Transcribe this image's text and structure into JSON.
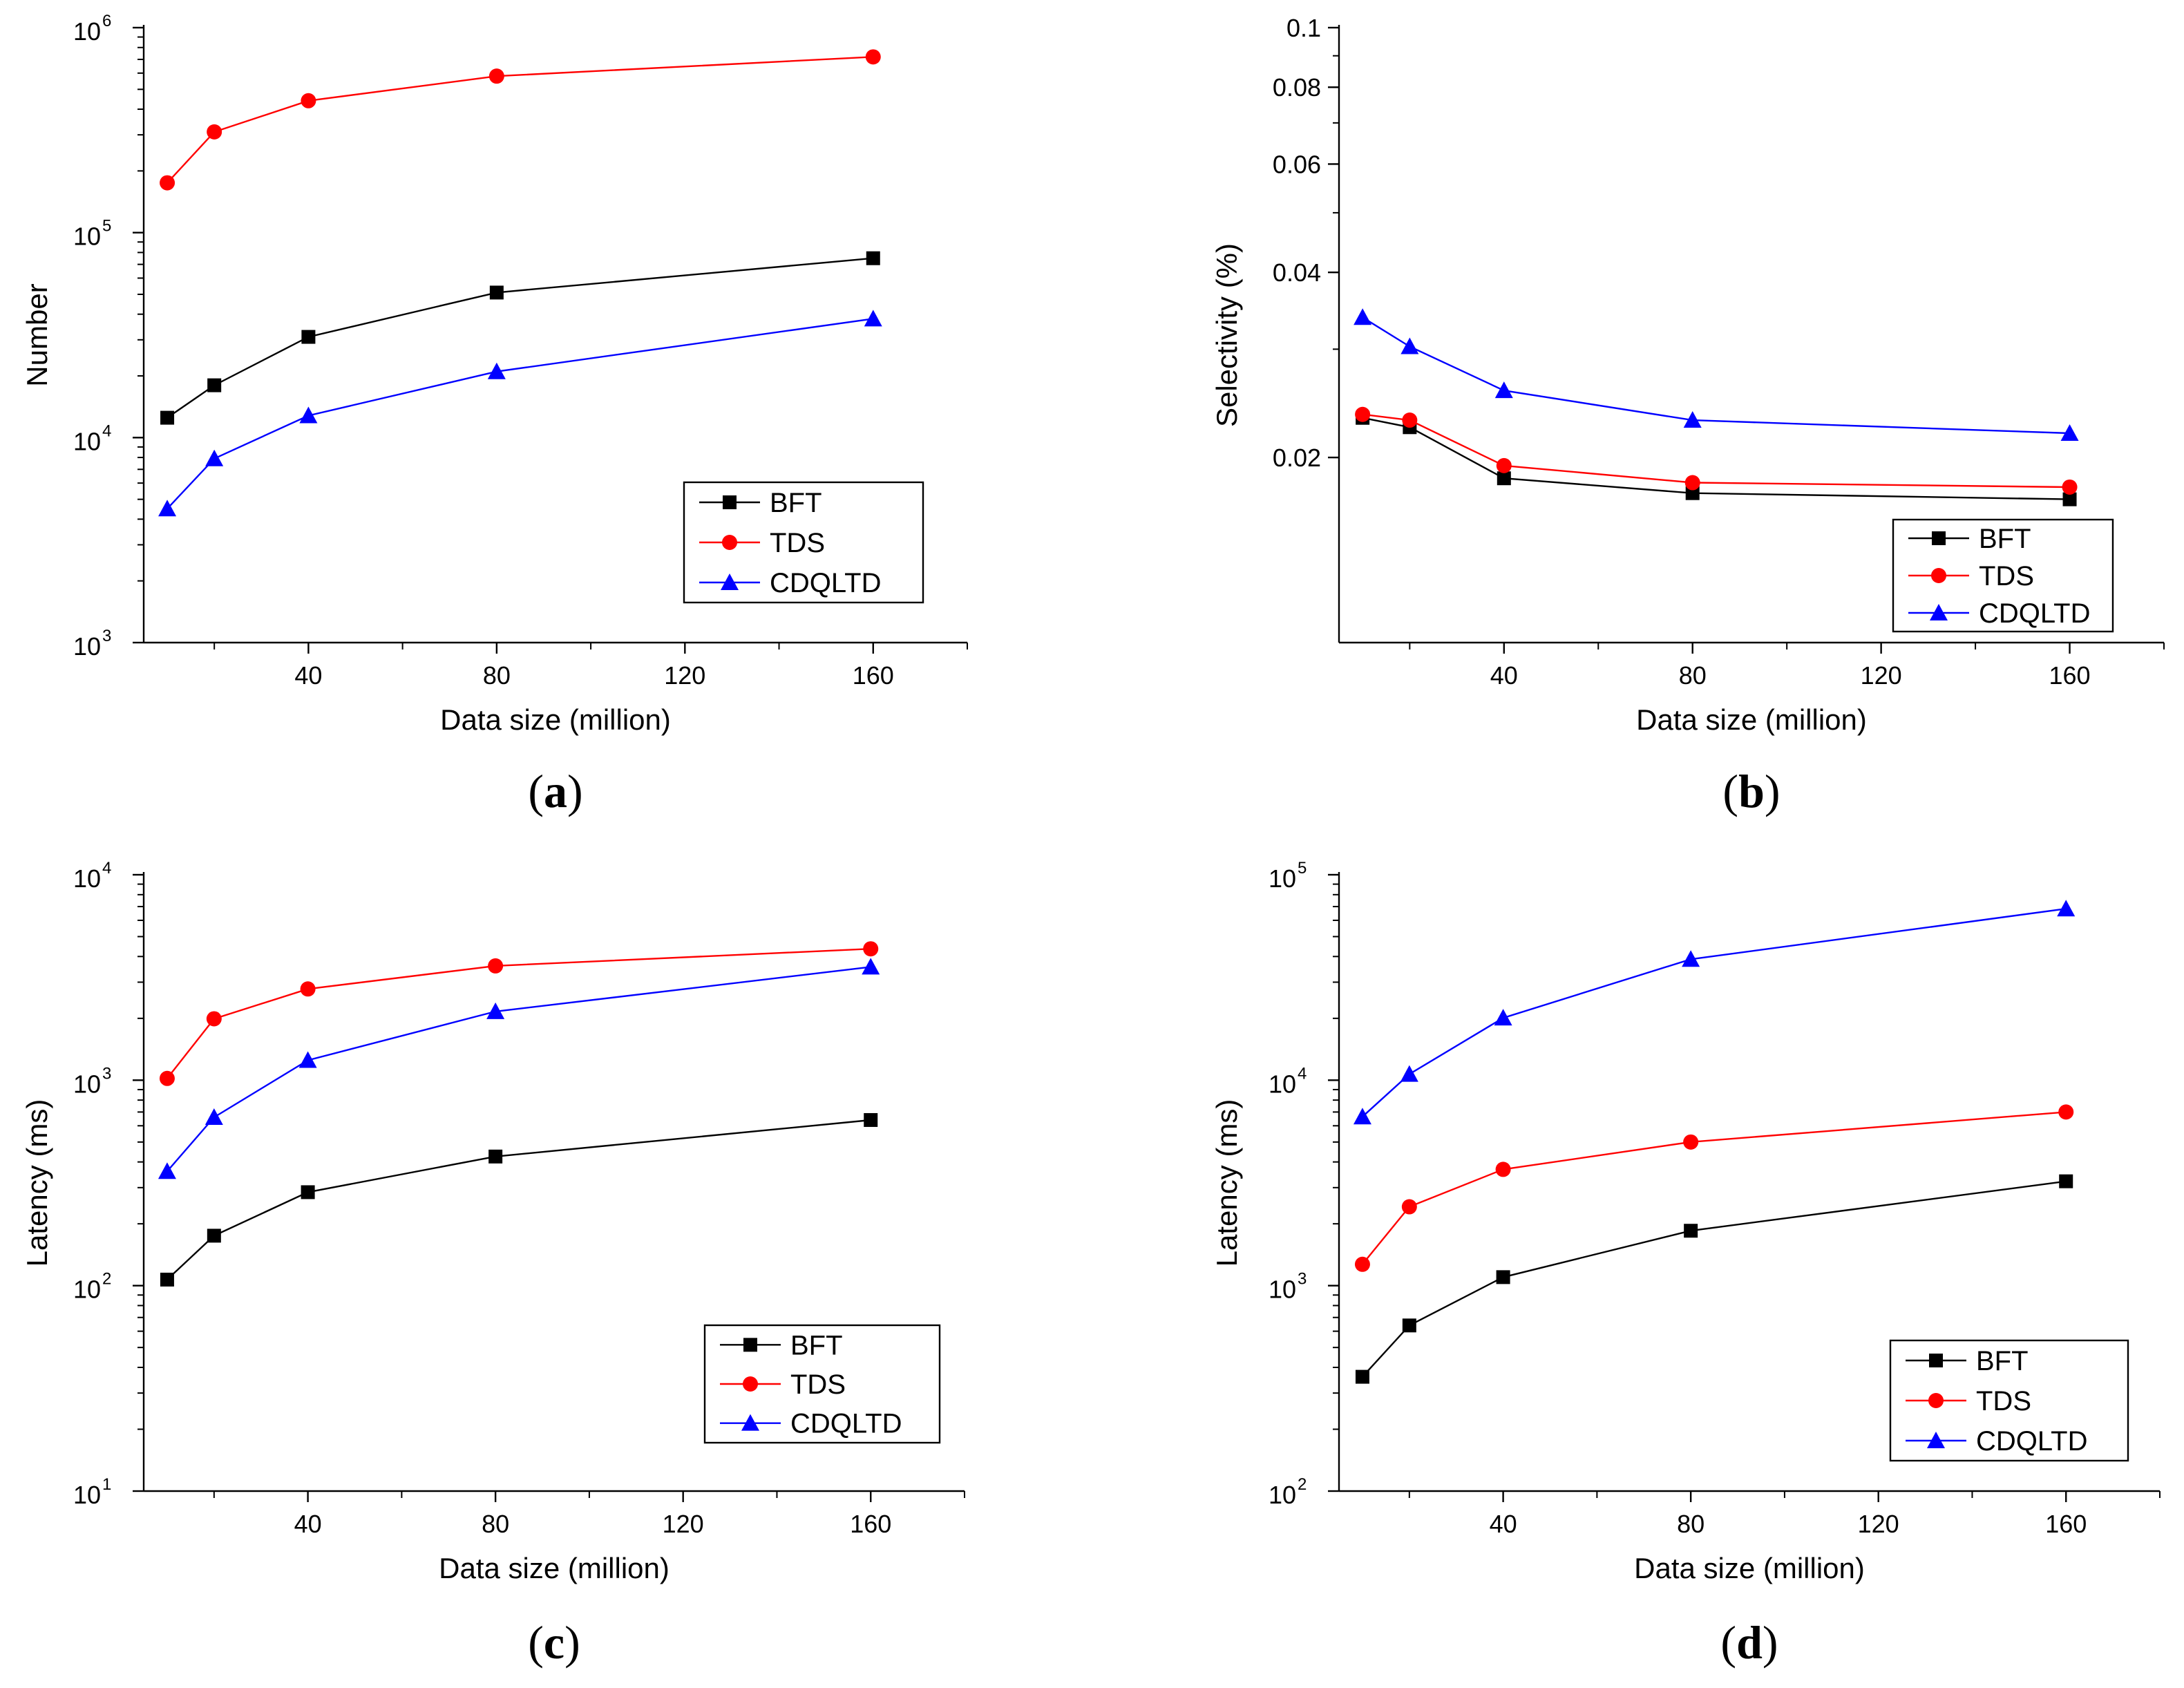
{
  "chart_data": [
    {
      "type": "line",
      "panel_label": "(a)",
      "panel_letter": "a",
      "xlabel": "Data size (million)",
      "ylabel": "Number",
      "yscale": "log",
      "xlim": [
        5,
        180
      ],
      "ylim": [
        1000,
        1000000
      ],
      "xticks": [
        40,
        80,
        120,
        160
      ],
      "yticks": [
        {
          "base": "10",
          "exp": "3",
          "value": 1000
        },
        {
          "base": "10",
          "exp": "4",
          "value": 10000
        },
        {
          "base": "10",
          "exp": "5",
          "value": 100000
        },
        {
          "base": "10",
          "exp": "6",
          "value": 1000000
        }
      ],
      "legend_position": "bottom-right",
      "x": [
        10,
        20,
        40,
        80,
        160
      ],
      "series": [
        {
          "name": "BFT",
          "color": "#000000",
          "marker": "square",
          "values": [
            12500,
            18000,
            31000,
            51000,
            75000
          ]
        },
        {
          "name": "TDS",
          "color": "#ff0000",
          "marker": "circle",
          "values": [
            175000,
            310000,
            440000,
            580000,
            720000
          ]
        },
        {
          "name": "CDQLTD",
          "color": "#0000ff",
          "marker": "triangle",
          "values": [
            4500,
            7900,
            12800,
            21000,
            38000
          ]
        }
      ]
    },
    {
      "type": "line",
      "panel_label": "(b)",
      "panel_letter": "b",
      "xlabel": "Data size (million)",
      "ylabel": "Selectivity (%)",
      "yscale": "log",
      "xlim": [
        5,
        180
      ],
      "ylim": [
        0.01,
        0.1
      ],
      "xticks": [
        40,
        80,
        120,
        160
      ],
      "yticks": [
        {
          "label": "0.02",
          "value": 0.02
        },
        {
          "label": "0.04",
          "value": 0.04
        },
        {
          "label": "0.06",
          "value": 0.06
        },
        {
          "label": "0.08",
          "value": 0.08
        },
        {
          "label": "0.1",
          "value": 0.1
        }
      ],
      "legend_position": "bottom-right",
      "x": [
        10,
        20,
        40,
        80,
        160
      ],
      "series": [
        {
          "name": "BFT",
          "color": "#000000",
          "marker": "square",
          "values": [
            0.0232,
            0.0224,
            0.0185,
            0.0175,
            0.0171
          ]
        },
        {
          "name": "TDS",
          "color": "#ff0000",
          "marker": "circle",
          "values": [
            0.0235,
            0.023,
            0.0194,
            0.0182,
            0.0179
          ]
        },
        {
          "name": "CDQLTD",
          "color": "#0000ff",
          "marker": "triangle",
          "values": [
            0.0338,
            0.0303,
            0.0257,
            0.023,
            0.0219
          ]
        }
      ]
    },
    {
      "type": "line",
      "panel_label": "(c)",
      "panel_letter": "c",
      "xlabel": "Data size (million)",
      "ylabel": "Latency (ms)",
      "yscale": "log",
      "xlim": [
        5,
        180
      ],
      "ylim": [
        10,
        10000
      ],
      "xticks": [
        40,
        80,
        120,
        160
      ],
      "yticks": [
        {
          "base": "10",
          "exp": "1",
          "value": 10
        },
        {
          "base": "10",
          "exp": "2",
          "value": 100
        },
        {
          "base": "10",
          "exp": "3",
          "value": 1000
        },
        {
          "base": "10",
          "exp": "4",
          "value": 10000
        }
      ],
      "legend_position": "bottom-right",
      "x": [
        10,
        20,
        40,
        80,
        160
      ],
      "series": [
        {
          "name": "BFT",
          "color": "#000000",
          "marker": "square",
          "values": [
            107,
            175,
            285,
            425,
            640
          ]
        },
        {
          "name": "TDS",
          "color": "#ff0000",
          "marker": "circle",
          "values": [
            1020,
            1990,
            2780,
            3600,
            4360
          ]
        },
        {
          "name": "CDQLTD",
          "color": "#0000ff",
          "marker": "triangle",
          "values": [
            360,
            660,
            1250,
            2160,
            3560
          ]
        }
      ]
    },
    {
      "type": "line",
      "panel_label": "(d)",
      "panel_letter": "d",
      "xlabel": "Data size (million)",
      "ylabel": "Latency (ms)",
      "yscale": "log",
      "xlim": [
        5,
        180
      ],
      "ylim": [
        100,
        100000
      ],
      "xticks": [
        40,
        80,
        120,
        160
      ],
      "yticks": [
        {
          "base": "10",
          "exp": "2",
          "value": 100
        },
        {
          "base": "10",
          "exp": "3",
          "value": 1000
        },
        {
          "base": "10",
          "exp": "4",
          "value": 10000
        },
        {
          "base": "10",
          "exp": "5",
          "value": 100000
        }
      ],
      "legend_position": "bottom-right",
      "x": [
        10,
        20,
        40,
        80,
        160
      ],
      "series": [
        {
          "name": "BFT",
          "color": "#000000",
          "marker": "square",
          "values": [
            360,
            640,
            1100,
            1850,
            3220
          ]
        },
        {
          "name": "TDS",
          "color": "#ff0000",
          "marker": "circle",
          "values": [
            1270,
            2420,
            3680,
            5000,
            7000
          ]
        },
        {
          "name": "CDQLTD",
          "color": "#0000ff",
          "marker": "triangle",
          "values": [
            6640,
            10700,
            20100,
            38800,
            68300
          ]
        }
      ]
    }
  ]
}
